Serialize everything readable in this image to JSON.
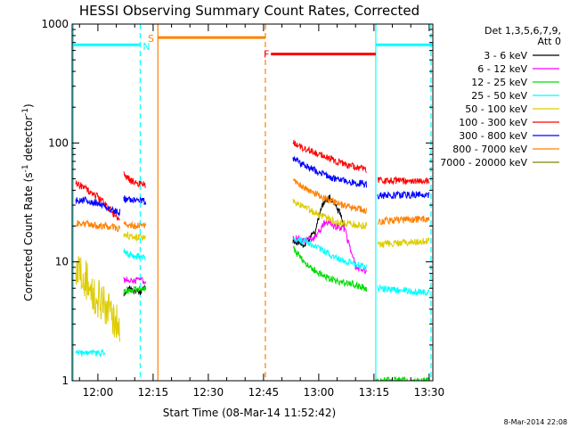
{
  "chart_data": {
    "type": "line",
    "title": "HESSI Observing Summary Count Rates, Corrected",
    "xlabel": "Start Time (08-Mar-14 11:52:42)",
    "ylabel_main": "Corrected Count Rate (s",
    "ylabel_sup1": "-1",
    "ylabel_mid": " detector",
    "ylabel_sup2": "-1",
    "ylabel_end": ")",
    "y_scale": "log",
    "ylim": [
      1,
      1000
    ],
    "xlim_minutes": [
      713,
      811
    ],
    "x_ticks": [
      {
        "label": "12:00",
        "minute": 720
      },
      {
        "label": "12:15",
        "minute": 735
      },
      {
        "label": "12:30",
        "minute": 750
      },
      {
        "label": "12:45",
        "minute": 765
      },
      {
        "label": "13:00",
        "minute": 780
      },
      {
        "label": "13:15",
        "minute": 795
      },
      {
        "label": "13:30",
        "minute": 810
      }
    ],
    "y_ticks": [
      {
        "label": "1",
        "value": 1
      },
      {
        "label": "10",
        "value": 10
      },
      {
        "label": "100",
        "value": 100
      },
      {
        "label": "1000",
        "value": 1000
      }
    ],
    "legend_header": [
      "Det 1,3,5,6,7,9,",
      "Att 0"
    ],
    "series": [
      {
        "name": "3 - 6 keV",
        "color": "#000000",
        "segments": [
          [
            [
              727,
              5.5
            ],
            [
              729,
              6
            ],
            [
              731,
              5.5
            ],
            [
              733,
              6
            ]
          ],
          [
            [
              773,
              15
            ],
            [
              776,
              14
            ],
            [
              779,
              18
            ],
            [
              781,
              30
            ],
            [
              783,
              35
            ],
            [
              786,
              25
            ],
            [
              787,
              20
            ]
          ]
        ]
      },
      {
        "name": "6 - 12 keV",
        "color": "#ff00ff",
        "segments": [
          [
            [
              727,
              7
            ],
            [
              731,
              7
            ],
            [
              733,
              7
            ]
          ],
          [
            [
              773,
              16
            ],
            [
              776,
              15
            ],
            [
              779,
              16
            ],
            [
              782,
              22
            ],
            [
              784,
              20
            ],
            [
              787,
              19
            ],
            [
              790,
              9
            ],
            [
              793,
              8.5
            ]
          ]
        ]
      },
      {
        "name": "12 - 25 keV",
        "color": "#00dd00",
        "segments": [
          [
            [
              727,
              5.5
            ],
            [
              730,
              6
            ],
            [
              733,
              6
            ]
          ],
          [
            [
              773,
              13
            ],
            [
              776,
              10
            ],
            [
              780,
              8
            ],
            [
              784,
              7
            ],
            [
              789,
              6.5
            ],
            [
              793,
              6
            ]
          ],
          [
            [
              795,
              1
            ],
            [
              810,
              1
            ]
          ]
        ]
      },
      {
        "name": "25 - 50 keV",
        "color": "#00ffff",
        "segments": [
          [
            [
              714,
              1.7
            ],
            [
              718,
              1.7
            ],
            [
              720,
              1.7
            ],
            [
              722,
              1.7
            ]
          ],
          [
            [
              727,
              12
            ],
            [
              730,
              11
            ],
            [
              733,
              11
            ]
          ],
          [
            [
              773,
              16
            ],
            [
              776,
              15
            ],
            [
              780,
              13
            ],
            [
              784,
              11
            ],
            [
              788,
              10
            ],
            [
              793,
              9
            ]
          ],
          [
            [
              796,
              6
            ],
            [
              810,
              5.5
            ]
          ]
        ]
      },
      {
        "name": "50 - 100 keV",
        "color": "#ddcc00",
        "segments": [
          [
            [
              714,
              9
            ],
            [
              716,
              8
            ],
            [
              718,
              6
            ],
            [
              720,
              5
            ],
            [
              722,
              4
            ],
            [
              724,
              3.5
            ],
            [
              726,
              3
            ]
          ],
          [
            [
              727,
              17
            ],
            [
              730,
              16
            ],
            [
              733,
              16
            ]
          ],
          [
            [
              773,
              32
            ],
            [
              776,
              29
            ],
            [
              780,
              25
            ],
            [
              784,
              22
            ],
            [
              788,
              21
            ],
            [
              793,
              20
            ]
          ],
          [
            [
              796,
              14
            ],
            [
              810,
              15
            ]
          ]
        ]
      },
      {
        "name": "100 - 300 keV",
        "color": "#ff0000",
        "segments": [
          [
            [
              714,
              45
            ],
            [
              716,
              43
            ],
            [
              718,
              38
            ],
            [
              720,
              35
            ],
            [
              722,
              30
            ],
            [
              724,
              26
            ],
            [
              726,
              22
            ]
          ],
          [
            [
              727,
              55
            ],
            [
              729,
              48
            ],
            [
              731,
              46
            ],
            [
              733,
              45
            ]
          ],
          [
            [
              773,
              100
            ],
            [
              776,
              90
            ],
            [
              780,
              80
            ],
            [
              784,
              72
            ],
            [
              788,
              65
            ],
            [
              793,
              60
            ]
          ],
          [
            [
              796,
              48
            ],
            [
              810,
              48
            ]
          ]
        ]
      },
      {
        "name": "300 - 800 keV",
        "color": "#0000ff",
        "segments": [
          [
            [
              714,
              33
            ],
            [
              717,
              33
            ],
            [
              720,
              31
            ],
            [
              723,
              28
            ],
            [
              726,
              26
            ]
          ],
          [
            [
              727,
              34
            ],
            [
              730,
              33
            ],
            [
              733,
              32
            ]
          ],
          [
            [
              773,
              75
            ],
            [
              776,
              65
            ],
            [
              780,
              57
            ],
            [
              784,
              50
            ],
            [
              788,
              47
            ],
            [
              793,
              45
            ]
          ],
          [
            [
              796,
              36
            ],
            [
              810,
              37
            ]
          ]
        ]
      },
      {
        "name": "800 - 7000 keV",
        "color": "#ff8000",
        "segments": [
          [
            [
              714,
              21
            ],
            [
              717,
              21
            ],
            [
              720,
              20
            ],
            [
              723,
              20
            ],
            [
              726,
              19
            ]
          ],
          [
            [
              727,
              21
            ],
            [
              730,
              20
            ],
            [
              733,
              20
            ]
          ],
          [
            [
              773,
              48
            ],
            [
              776,
              42
            ],
            [
              780,
              36
            ],
            [
              784,
              32
            ],
            [
              788,
              29
            ],
            [
              793,
              27
            ]
          ],
          [
            [
              796,
              22
            ],
            [
              810,
              23
            ]
          ]
        ]
      },
      {
        "name": "7000 - 20000 keV",
        "color": "#808000",
        "segments": []
      }
    ],
    "vlines": [
      {
        "minute": 736.3,
        "color": "#ff8000",
        "style": "solid"
      },
      {
        "minute": 765.5,
        "color": "#ff8000",
        "style": "dashed"
      },
      {
        "minute": 713.3,
        "color": "#00ffff",
        "style": "solid"
      },
      {
        "minute": 795.5,
        "color": "#00ffff",
        "style": "solid"
      },
      {
        "minute": 731.5,
        "color": "#00ffff",
        "style": "dashed"
      },
      {
        "minute": 810.5,
        "color": "#00ffff",
        "style": "dashed"
      }
    ],
    "flag_bars": [
      {
        "color": "#00ffff",
        "y": 670,
        "from": 713,
        "to": 731.5
      },
      {
        "color": "#ff8000",
        "y": 770,
        "from": 736.3,
        "to": 765.5
      },
      {
        "color": "#ff0000",
        "y": 560,
        "from": 767,
        "to": 795.5
      },
      {
        "color": "#00ffff",
        "y": 670,
        "from": 795.5,
        "to": 811
      }
    ],
    "flag_labels": [
      {
        "text": "N",
        "color": "#00ffff",
        "minute": 733.2,
        "y": 650
      },
      {
        "text": "S",
        "color": "#ff8000",
        "minute": 734.4,
        "y": 760
      },
      {
        "text": "F",
        "color": "#ff0000",
        "minute": 765.8,
        "y": 560
      }
    ]
  },
  "footer_date": "8-Mar-2014 22:08"
}
